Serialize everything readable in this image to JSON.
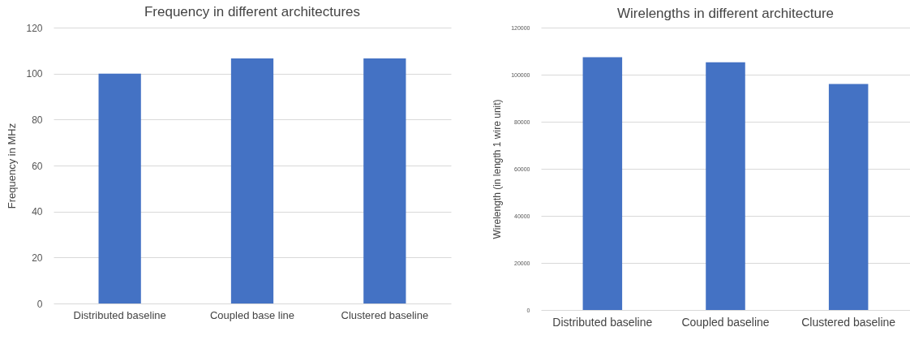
{
  "chart_data": [
    {
      "type": "bar",
      "title": "Frequency in different architectures",
      "ylabel": "Frequency in MHz",
      "categories": [
        "Distributed baseline",
        "Coupled base line",
        "Clustered baseline"
      ],
      "values": [
        100,
        106.6,
        106.6
      ],
      "color": "#4472c4",
      "ylim": [
        0,
        120
      ],
      "yticks": [
        0,
        20,
        40,
        60,
        80,
        100,
        120
      ],
      "grid": "y"
    },
    {
      "type": "bar",
      "title": "Wirelengths in different architecture",
      "ylabel": "Wirelength (in length 1 wire unit)",
      "categories": [
        "Distributed baseline",
        "Coupled baseline",
        "Clustered baseline"
      ],
      "values": [
        107400,
        105300,
        96000
      ],
      "color": "#4472c4",
      "ylim": [
        0,
        120000
      ],
      "yticks": [
        0,
        20000,
        40000,
        60000,
        80000,
        100000,
        120000
      ],
      "grid": "y"
    }
  ]
}
